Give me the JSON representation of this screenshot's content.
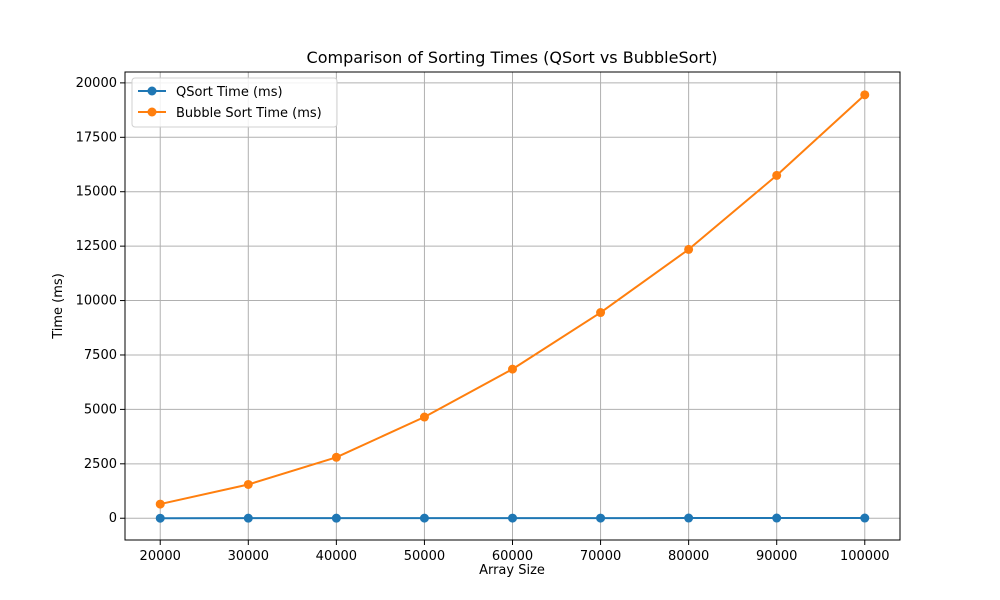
{
  "chart_data": {
    "type": "line",
    "title": "Comparison of Sorting Times (QSort vs BubbleSort)",
    "xlabel": "Array Size",
    "ylabel": "Time (ms)",
    "x": [
      20000,
      30000,
      40000,
      50000,
      60000,
      70000,
      80000,
      90000,
      100000
    ],
    "xlim": [
      16000,
      104000
    ],
    "ylim": [
      -1000,
      20500
    ],
    "xticks": [
      20000,
      30000,
      40000,
      50000,
      60000,
      70000,
      80000,
      90000,
      100000
    ],
    "yticks": [
      0,
      2500,
      5000,
      7500,
      10000,
      12500,
      15000,
      17500,
      20000
    ],
    "grid": true,
    "legend_position": "top-left",
    "series": [
      {
        "name": "QSort Time (ms)",
        "color": "#1f77b4",
        "values": [
          2,
          3,
          4,
          5,
          6,
          7,
          8,
          9,
          10
        ]
      },
      {
        "name": "Bubble Sort Time (ms)",
        "color": "#ff7f0e",
        "values": [
          650,
          1550,
          2800,
          4650,
          6850,
          9450,
          12350,
          15750,
          19450
        ]
      }
    ]
  }
}
